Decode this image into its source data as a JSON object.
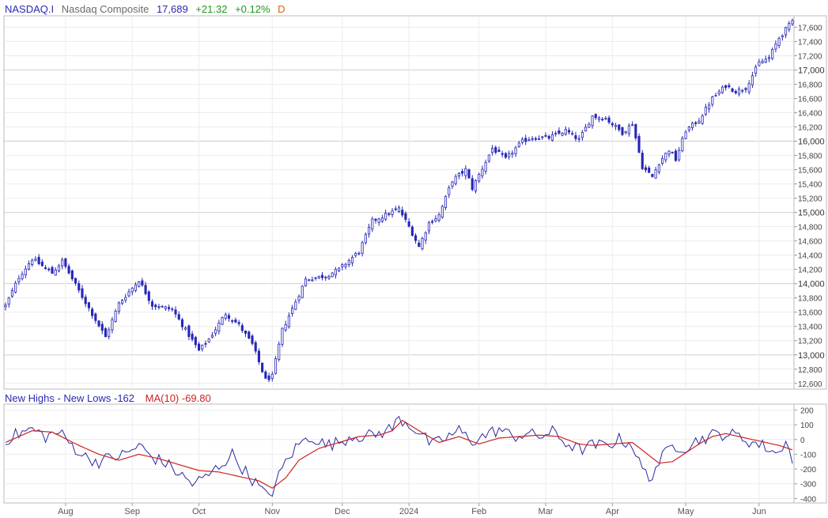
{
  "header": {
    "symbol": "NASDAQ.I",
    "name": "Nasdaq Composite",
    "last": "17,689",
    "change": "+21.32",
    "change_pct": "+0.12%",
    "interval": "D"
  },
  "indicator": {
    "label": "New Highs - New Lows -162",
    "ma_label": "MA(10) -69.80"
  },
  "colors": {
    "candle": "#2626b8",
    "ma": "#cc2222",
    "up_text": "#1a9a1a",
    "interval": "#e06010"
  },
  "chart_data": [
    {
      "type": "candlestick",
      "title": "Nasdaq Composite",
      "y_axis_ticks": [
        {
          "v": 12600,
          "label": "12,600",
          "major": false
        },
        {
          "v": 12800,
          "label": "12,800",
          "major": false
        },
        {
          "v": 13000,
          "label": "13,000",
          "major": true
        },
        {
          "v": 13200,
          "label": "13,200",
          "major": false
        },
        {
          "v": 13400,
          "label": "13,400",
          "major": false
        },
        {
          "v": 13600,
          "label": "13,600",
          "major": false
        },
        {
          "v": 13800,
          "label": "13,800",
          "major": false
        },
        {
          "v": 14000,
          "label": "14,000",
          "major": true
        },
        {
          "v": 14200,
          "label": "14,200",
          "major": false
        },
        {
          "v": 14400,
          "label": "14,400",
          "major": false
        },
        {
          "v": 14600,
          "label": "14,600",
          "major": false
        },
        {
          "v": 14800,
          "label": "14,800",
          "major": false
        },
        {
          "v": 15000,
          "label": "15,000",
          "major": true
        },
        {
          "v": 15200,
          "label": "15,200",
          "major": false
        },
        {
          "v": 15400,
          "label": "15,400",
          "major": false
        },
        {
          "v": 15600,
          "label": "15,600",
          "major": false
        },
        {
          "v": 15800,
          "label": "15,800",
          "major": false
        },
        {
          "v": 16000,
          "label": "16,000",
          "major": true
        },
        {
          "v": 16200,
          "label": "16,200",
          "major": false
        },
        {
          "v": 16400,
          "label": "16,400",
          "major": false
        },
        {
          "v": 16600,
          "label": "16,600",
          "major": false
        },
        {
          "v": 16800,
          "label": "16,800",
          "major": false
        },
        {
          "v": 17000,
          "label": "17,000",
          "major": true
        },
        {
          "v": 17200,
          "label": "17,200",
          "major": false
        },
        {
          "v": 17400,
          "label": "17,400",
          "major": false
        },
        {
          "v": 17600,
          "label": "17,600",
          "major": false
        }
      ],
      "ylim": [
        12520,
        17760
      ],
      "x_months": [
        {
          "label": "Aug",
          "i": 18
        },
        {
          "label": "Sep",
          "i": 38
        },
        {
          "label": "Oct",
          "i": 58
        },
        {
          "label": "Nov",
          "i": 80
        },
        {
          "label": "Dec",
          "i": 101
        },
        {
          "label": "2024",
          "i": 121
        },
        {
          "label": "Feb",
          "i": 142
        },
        {
          "label": "Mar",
          "i": 162
        },
        {
          "label": "Apr",
          "i": 182
        },
        {
          "label": "May",
          "i": 204
        },
        {
          "label": "Jun",
          "i": 226
        }
      ],
      "n": 237,
      "anchors": [
        [
          0,
          13690
        ],
        [
          4,
          14090
        ],
        [
          8,
          14350
        ],
        [
          14,
          14150
        ],
        [
          17,
          14320
        ],
        [
          22,
          13900
        ],
        [
          30,
          13250
        ],
        [
          34,
          13720
        ],
        [
          40,
          14050
        ],
        [
          44,
          13700
        ],
        [
          50,
          13640
        ],
        [
          54,
          13350
        ],
        [
          58,
          13060
        ],
        [
          61,
          13220
        ],
        [
          66,
          13580
        ],
        [
          70,
          13420
        ],
        [
          74,
          13150
        ],
        [
          78,
          12650
        ],
        [
          80,
          12700
        ],
        [
          83,
          13350
        ],
        [
          88,
          13850
        ],
        [
          90,
          14060
        ],
        [
          96,
          14110
        ],
        [
          100,
          14200
        ],
        [
          106,
          14450
        ],
        [
          110,
          14880
        ],
        [
          118,
          15050
        ],
        [
          121,
          14800
        ],
        [
          124,
          14520
        ],
        [
          127,
          14850
        ],
        [
          130,
          14960
        ],
        [
          134,
          15450
        ],
        [
          138,
          15600
        ],
        [
          140,
          15340
        ],
        [
          146,
          15900
        ],
        [
          150,
          15750
        ],
        [
          155,
          16000
        ],
        [
          158,
          16050
        ],
        [
          163,
          16050
        ],
        [
          168,
          16150
        ],
        [
          172,
          16020
        ],
        [
          176,
          16350
        ],
        [
          180,
          16320
        ],
        [
          185,
          16120
        ],
        [
          188,
          16250
        ],
        [
          191,
          15640
        ],
        [
          194,
          15500
        ],
        [
          196,
          15700
        ],
        [
          199,
          15880
        ],
        [
          201,
          15740
        ],
        [
          204,
          16150
        ],
        [
          208,
          16300
        ],
        [
          212,
          16600
        ],
        [
          216,
          16780
        ],
        [
          219,
          16700
        ],
        [
          222,
          16750
        ],
        [
          226,
          17100
        ],
        [
          229,
          17170
        ],
        [
          232,
          17450
        ],
        [
          236,
          17689
        ]
      ],
      "indicator": {
        "name": "New Highs - New Lows",
        "ma_name": "MA(10)",
        "last": -162,
        "ma_last": -69.8,
        "ylim": [
          -430,
          240
        ],
        "y_axis_ticks": [
          {
            "v": 200,
            "label": "200"
          },
          {
            "v": 100,
            "label": "100"
          },
          {
            "v": 0,
            "label": "0"
          },
          {
            "v": -100,
            "label": "-100"
          },
          {
            "v": -200,
            "label": "-200"
          },
          {
            "v": -300,
            "label": "-300"
          },
          {
            "v": -400,
            "label": "-400"
          }
        ],
        "anchors": [
          [
            0,
            0
          ],
          [
            4,
            40
          ],
          [
            8,
            70
          ],
          [
            12,
            20
          ],
          [
            16,
            50
          ],
          [
            20,
            -40
          ],
          [
            24,
            -120
          ],
          [
            28,
            -150
          ],
          [
            32,
            -120
          ],
          [
            36,
            -100
          ],
          [
            40,
            -40
          ],
          [
            44,
            -120
          ],
          [
            48,
            -160
          ],
          [
            52,
            -230
          ],
          [
            56,
            -300
          ],
          [
            60,
            -260
          ],
          [
            64,
            -180
          ],
          [
            68,
            -100
          ],
          [
            72,
            -220
          ],
          [
            76,
            -320
          ],
          [
            78,
            -380
          ],
          [
            80,
            -350
          ],
          [
            84,
            -150
          ],
          [
            88,
            -30
          ],
          [
            92,
            20
          ],
          [
            96,
            -40
          ],
          [
            100,
            -20
          ],
          [
            104,
            30
          ],
          [
            108,
            20
          ],
          [
            112,
            40
          ],
          [
            116,
            80
          ],
          [
            118,
            140
          ],
          [
            120,
            120
          ],
          [
            124,
            50
          ],
          [
            128,
            -40
          ],
          [
            132,
            10
          ],
          [
            136,
            60
          ],
          [
            140,
            -10
          ],
          [
            144,
            30
          ],
          [
            148,
            70
          ],
          [
            152,
            20
          ],
          [
            156,
            40
          ],
          [
            160,
            20
          ],
          [
            164,
            50
          ],
          [
            168,
            -20
          ],
          [
            172,
            -70
          ],
          [
            176,
            -40
          ],
          [
            180,
            -40
          ],
          [
            184,
            0
          ],
          [
            188,
            -30
          ],
          [
            190,
            -160
          ],
          [
            193,
            -270
          ],
          [
            196,
            -150
          ],
          [
            200,
            -40
          ],
          [
            204,
            -50
          ],
          [
            208,
            0
          ],
          [
            212,
            30
          ],
          [
            216,
            40
          ],
          [
            220,
            20
          ],
          [
            224,
            -20
          ],
          [
            228,
            -50
          ],
          [
            232,
            -100
          ],
          [
            234,
            20
          ],
          [
            236,
            -162
          ]
        ],
        "ma_anchors": [
          [
            0,
            -20
          ],
          [
            8,
            60
          ],
          [
            14,
            50
          ],
          [
            22,
            -40
          ],
          [
            28,
            -100
          ],
          [
            34,
            -140
          ],
          [
            40,
            -100
          ],
          [
            46,
            -130
          ],
          [
            52,
            -170
          ],
          [
            58,
            -210
          ],
          [
            64,
            -220
          ],
          [
            70,
            -250
          ],
          [
            76,
            -280
          ],
          [
            80,
            -330
          ],
          [
            84,
            -260
          ],
          [
            88,
            -140
          ],
          [
            94,
            -60
          ],
          [
            100,
            -20
          ],
          [
            106,
            20
          ],
          [
            112,
            30
          ],
          [
            116,
            60
          ],
          [
            119,
            130
          ],
          [
            124,
            60
          ],
          [
            130,
            -20
          ],
          [
            136,
            20
          ],
          [
            142,
            -30
          ],
          [
            148,
            10
          ],
          [
            154,
            20
          ],
          [
            160,
            30
          ],
          [
            166,
            20
          ],
          [
            172,
            -30
          ],
          [
            176,
            -40
          ],
          [
            182,
            -30
          ],
          [
            188,
            -20
          ],
          [
            192,
            -90
          ],
          [
            196,
            -160
          ],
          [
            200,
            -150
          ],
          [
            204,
            -90
          ],
          [
            208,
            -30
          ],
          [
            212,
            20
          ],
          [
            216,
            40
          ],
          [
            220,
            20
          ],
          [
            226,
            -10
          ],
          [
            232,
            -40
          ],
          [
            236,
            -70
          ]
        ]
      }
    }
  ]
}
